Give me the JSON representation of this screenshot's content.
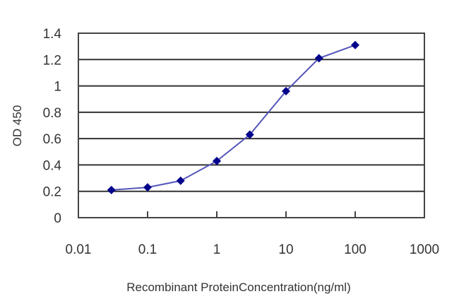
{
  "chart_data": {
    "type": "line",
    "title": "",
    "xlabel": "Recombinant ProteinConcentration(ng/ml)",
    "ylabel": "OD 450",
    "x_scale": "log",
    "xlim": [
      0.01,
      1000
    ],
    "ylim": [
      0,
      1.4
    ],
    "x_ticks": [
      "0.01",
      "0.1",
      "1",
      "10",
      "100",
      "1000"
    ],
    "y_ticks": [
      "0",
      "0.2",
      "0.4",
      "0.6",
      "0.8",
      "1",
      "1.2",
      "1.4"
    ],
    "grid": "horizontal",
    "legend": null,
    "series": [
      {
        "name": "OD 450",
        "color": "#00008B",
        "line_color": "#5555BB",
        "marker": "diamond",
        "x": [
          0.03,
          0.1,
          0.3,
          1,
          3,
          10,
          30,
          100
        ],
        "values": [
          0.21,
          0.23,
          0.28,
          0.43,
          0.63,
          0.96,
          1.21,
          1.31
        ]
      }
    ]
  }
}
